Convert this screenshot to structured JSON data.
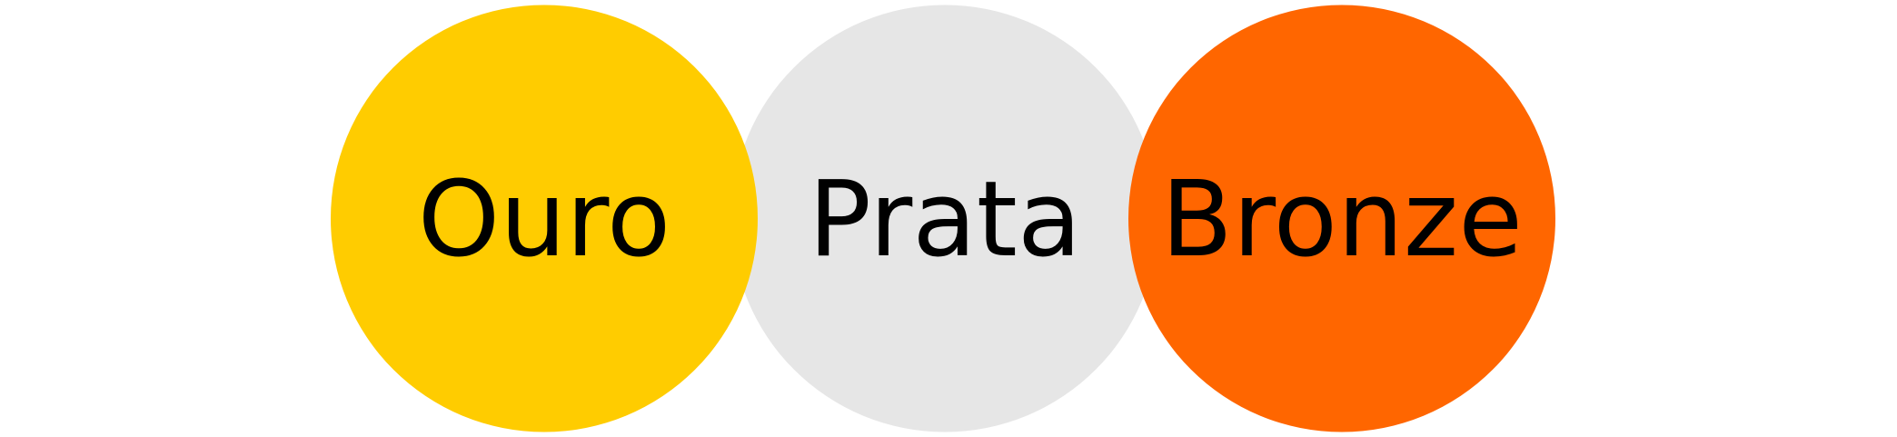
{
  "diagram": {
    "circles": [
      {
        "id": "gold",
        "label": "Ouro",
        "color": "#FFCC00"
      },
      {
        "id": "silver",
        "label": "Prata",
        "color": "#E6E6E6"
      },
      {
        "id": "bronze",
        "label": "Bronze",
        "color": "#FF6600"
      }
    ],
    "label_color": "#000000"
  }
}
